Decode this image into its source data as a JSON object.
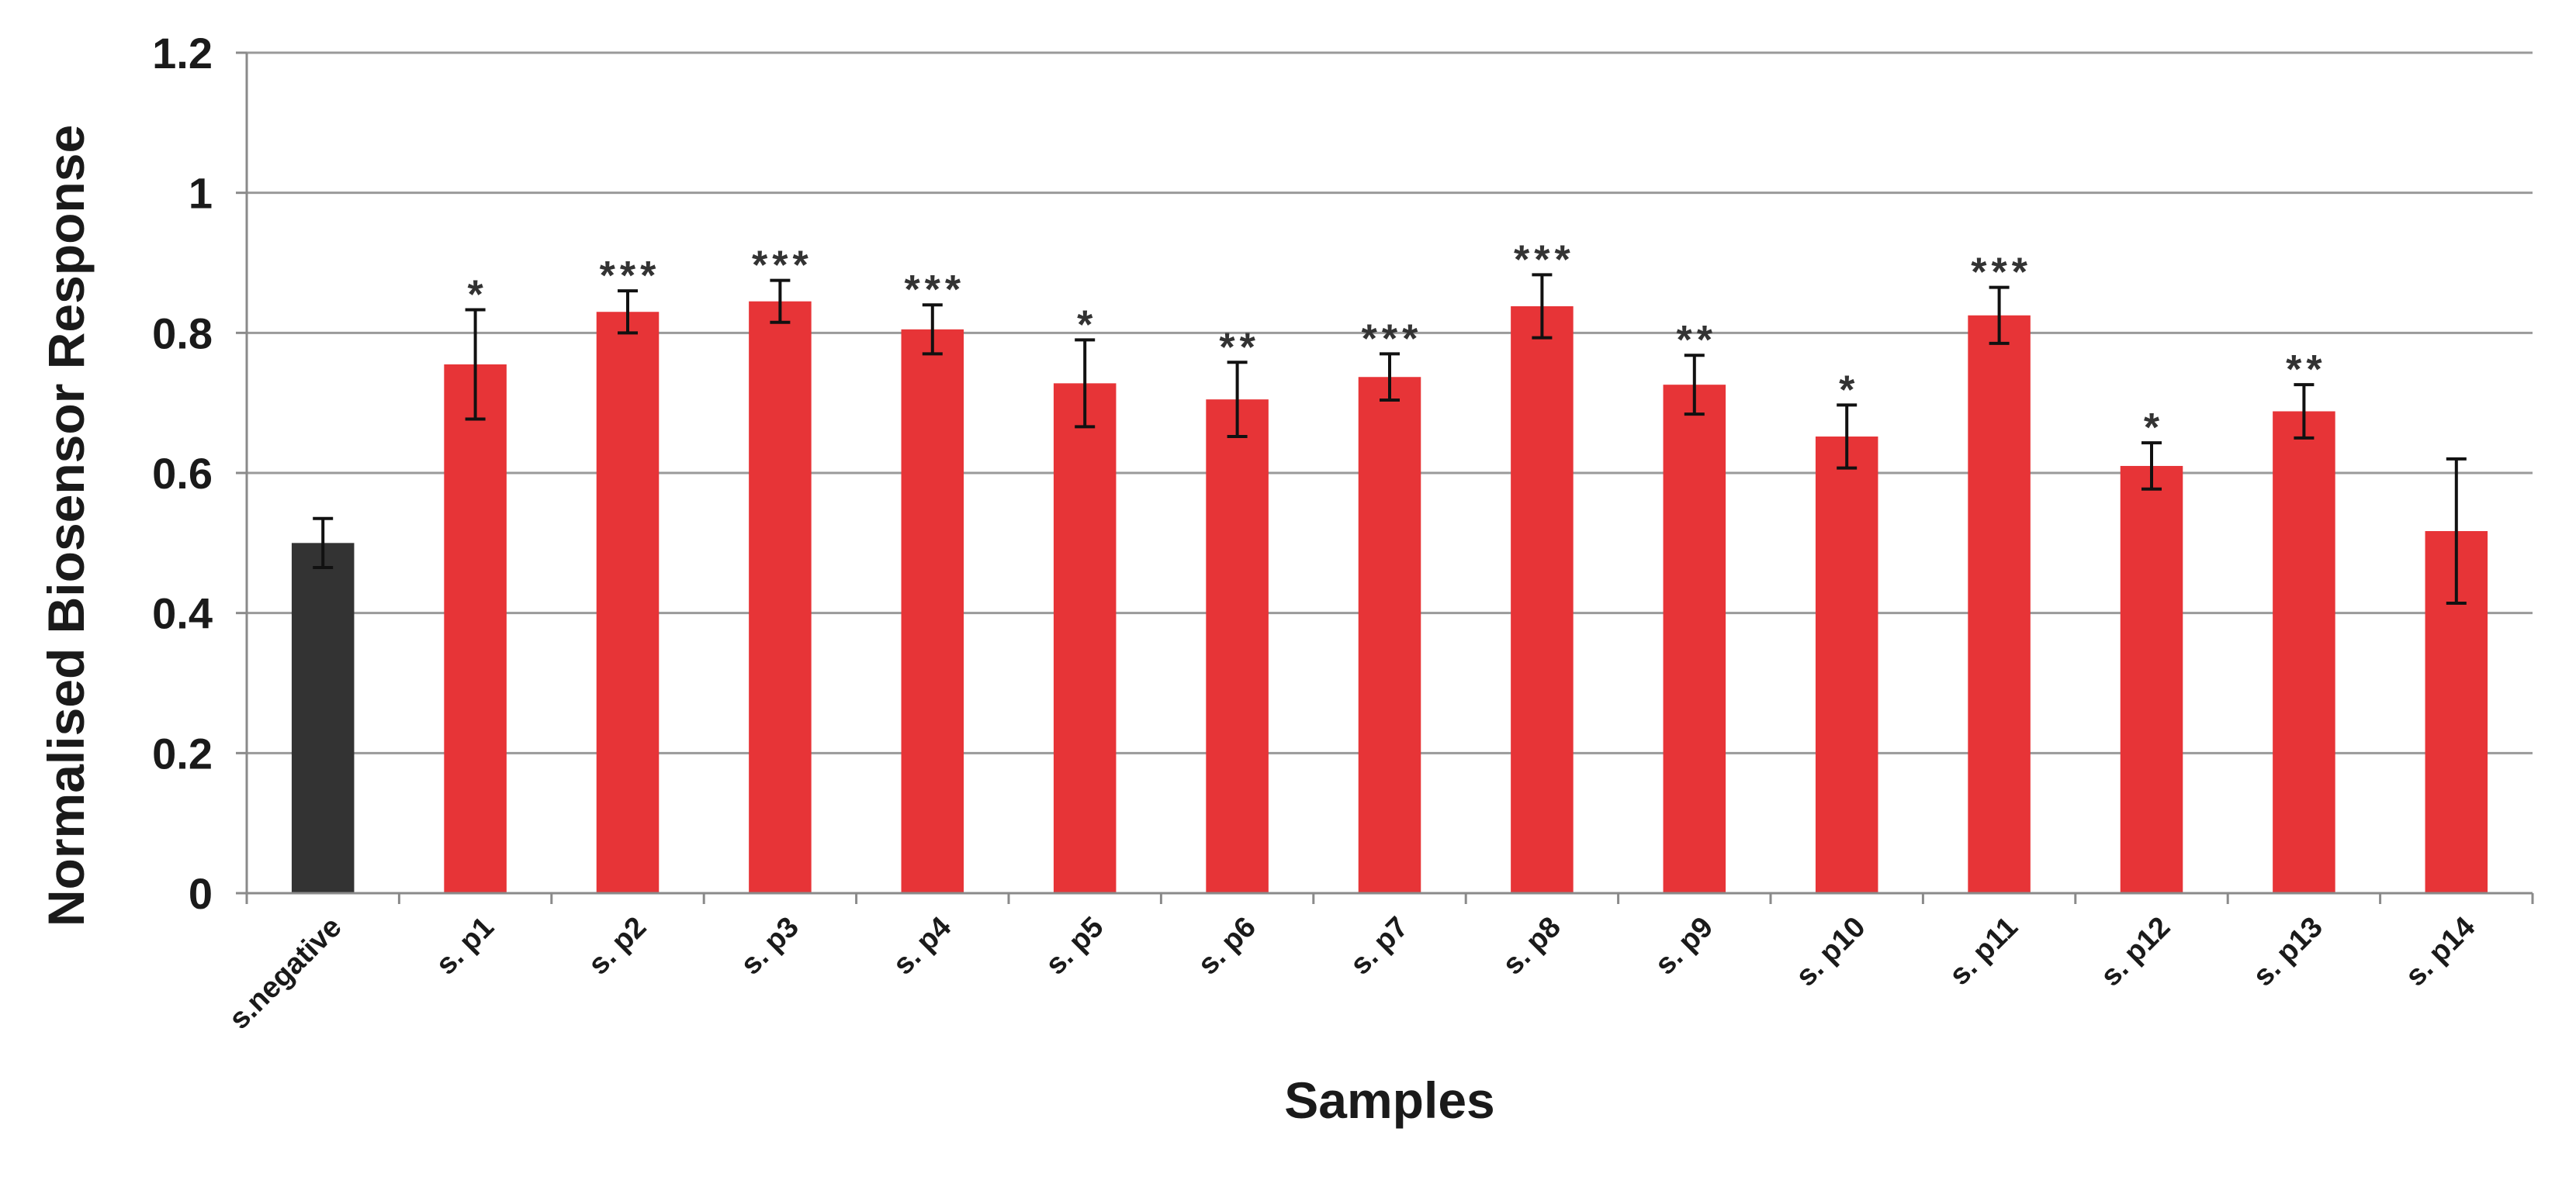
{
  "chart_data": {
    "type": "bar",
    "xlabel": "Samples",
    "ylabel": "Normalised Biosensor Response",
    "ylim": [
      0,
      1.2
    ],
    "yticks": [
      "0",
      "0.2",
      "0.4",
      "0.6",
      "0.8",
      "1",
      "1.2"
    ],
    "grid": true,
    "categories": [
      "s.negative",
      "s. p1",
      "s. p2",
      "s. p3",
      "s. p4",
      "s. p5",
      "s. p6",
      "s. p7",
      "s. p8",
      "s. p9",
      "s. p10",
      "s. p11",
      "s. p12",
      "s. p13",
      "s. p14"
    ],
    "values": [
      0.5,
      0.755,
      0.83,
      0.845,
      0.805,
      0.728,
      0.705,
      0.737,
      0.838,
      0.726,
      0.652,
      0.825,
      0.61,
      0.688,
      0.517
    ],
    "errors": [
      0.035,
      0.078,
      0.03,
      0.03,
      0.035,
      0.062,
      0.053,
      0.033,
      0.045,
      0.042,
      0.045,
      0.04,
      0.033,
      0.038,
      0.103
    ],
    "significance": [
      "",
      "*",
      "***",
      "***",
      "***",
      "*",
      "**",
      "***",
      "***",
      "**",
      "*",
      "***",
      "*",
      "**",
      ""
    ],
    "colors": [
      "#333333",
      "#e73437",
      "#e73437",
      "#e73437",
      "#e73437",
      "#e73437",
      "#e73437",
      "#e73437",
      "#e73437",
      "#e73437",
      "#e73437",
      "#e73437",
      "#e73437",
      "#e73437",
      "#e73437"
    ]
  }
}
